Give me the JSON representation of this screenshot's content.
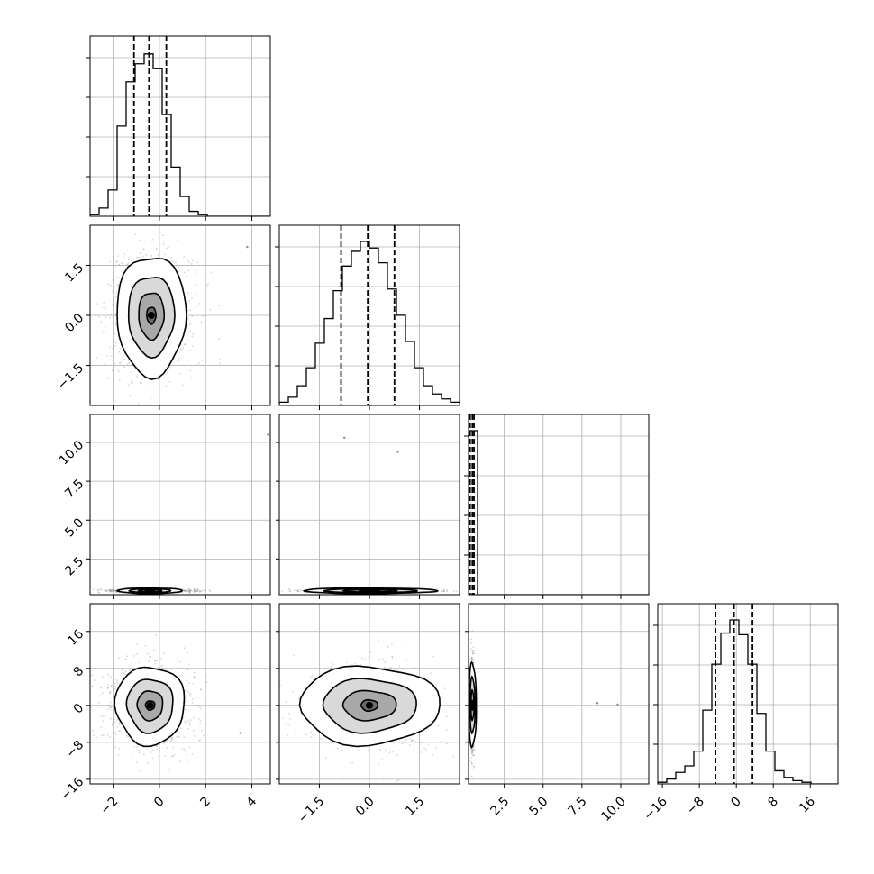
{
  "chart_data": {
    "type": "corner",
    "title": "",
    "grid": true,
    "parameters": [
      {
        "index": 0,
        "range": [
          -3.0,
          4.8
        ],
        "ticks": [
          -2,
          0,
          2,
          4
        ],
        "median": -0.45,
        "q16": -1.1,
        "q84": 0.3
      },
      {
        "index": 1,
        "range": [
          -2.7,
          2.7
        ],
        "ticks": [
          -1.5,
          0.0,
          1.5
        ],
        "median": -0.05,
        "q16": -0.85,
        "q84": 0.75
      },
      {
        "index": 2,
        "range": [
          0.2,
          11.8
        ],
        "ticks": [
          2.5,
          5.0,
          7.5,
          10.0
        ],
        "median": 0.45,
        "q16": 0.3,
        "q84": 0.55
      },
      {
        "index": 3,
        "range": [
          -17,
          22
        ],
        "ticks": [
          -16,
          -8,
          0,
          8,
          16
        ],
        "median": -0.5,
        "q16": -4.5,
        "q84": 3.5
      }
    ],
    "tick_labels": {
      "p0": [
        "−2",
        "0",
        "2",
        "4"
      ],
      "p1": [
        "−1.5",
        "0.0",
        "1.5"
      ],
      "p2": [
        "2.5",
        "5.0",
        "7.5",
        "10.0"
      ],
      "p3": [
        "−16",
        "−8",
        "0",
        "8",
        "16"
      ]
    },
    "histograms": [
      {
        "param": 0,
        "bin_edges": [
          -3.0,
          -2.61,
          -2.22,
          -1.83,
          -1.44,
          -1.05,
          -0.66,
          -0.27,
          0.12,
          0.51,
          0.9,
          1.29,
          1.68,
          2.07,
          2.46,
          2.85,
          3.24,
          3.63,
          4.02,
          4.41,
          4.8
        ],
        "counts": [
          0.01,
          0.05,
          0.16,
          0.55,
          0.82,
          0.93,
          0.99,
          0.9,
          0.62,
          0.3,
          0.12,
          0.03,
          0.01,
          0.0,
          0.0,
          0.0,
          0.0,
          0.0,
          0.0,
          0.0
        ]
      },
      {
        "param": 1,
        "bin_edges": [
          -2.7,
          -2.43,
          -2.16,
          -1.89,
          -1.62,
          -1.35,
          -1.08,
          -0.81,
          -0.54,
          -0.27,
          0.0,
          0.27,
          0.54,
          0.81,
          1.08,
          1.35,
          1.62,
          1.89,
          2.16,
          2.43,
          2.7
        ],
        "counts": [
          0.02,
          0.05,
          0.12,
          0.23,
          0.38,
          0.53,
          0.7,
          0.85,
          0.94,
          1.0,
          0.96,
          0.87,
          0.71,
          0.55,
          0.39,
          0.23,
          0.12,
          0.07,
          0.04,
          0.02
        ]
      },
      {
        "param": 2,
        "bin_edges": [
          0.2,
          0.78,
          1.36,
          1.94,
          2.52,
          3.1,
          3.68,
          4.26,
          4.84,
          5.42,
          6.0,
          6.58,
          7.16,
          7.74,
          8.32,
          8.9,
          9.48,
          10.06,
          10.64,
          11.22,
          11.8
        ],
        "counts": [
          1.0,
          0.0,
          0.0,
          0.0,
          0.0,
          0.0,
          0.0,
          0.0,
          0.0,
          0.0,
          0.0,
          0.0,
          0.0,
          0.0,
          0.0,
          0.0,
          0.0,
          0.0,
          0.0,
          0.0
        ]
      },
      {
        "param": 3,
        "bin_edges": [
          -17.0,
          -15.05,
          -13.1,
          -11.15,
          -9.2,
          -7.25,
          -5.3,
          -3.35,
          -1.4,
          0.55,
          2.5,
          4.45,
          6.4,
          8.35,
          10.3,
          12.25,
          14.2,
          16.15,
          18.1,
          20.05,
          22.0
        ],
        "counts": [
          0.01,
          0.03,
          0.07,
          0.11,
          0.2,
          0.45,
          0.73,
          0.92,
          1.0,
          0.91,
          0.73,
          0.43,
          0.2,
          0.08,
          0.04,
          0.02,
          0.01,
          0.0,
          0.0,
          0.0
        ]
      }
    ],
    "contours_2d": [
      {
        "x_param": 0,
        "y_param": 1,
        "center": [
          -0.35,
          0.0
        ],
        "sigma_x": [
          1.5,
          1.0,
          0.55,
          0.2
        ],
        "sigma_y": [
          1.8,
          1.2,
          0.7,
          0.25
        ]
      },
      {
        "x_param": 0,
        "y_param": 3,
        "center": [
          -0.4,
          0.0
        ],
        "sigma_x": [
          1.5,
          1.0,
          0.55,
          0.2
        ],
        "sigma_y": [
          8.5,
          5.8,
          3.2,
          1.0
        ]
      },
      {
        "x_param": 1,
        "y_param": 3,
        "center": [
          0.0,
          0.0
        ],
        "sigma_x": [
          2.1,
          1.4,
          0.8,
          0.25
        ],
        "sigma_y": [
          8.5,
          5.8,
          3.2,
          1.2
        ]
      },
      {
        "x_param": 0,
        "y_param": 2,
        "center": [
          -0.4,
          0.45
        ],
        "sigma_x": [
          1.4,
          0.9,
          0.5,
          0.2
        ],
        "sigma_y": [
          0.18,
          0.12,
          0.07,
          0.03
        ]
      },
      {
        "x_param": 1,
        "y_param": 2,
        "center": [
          0.0,
          0.45
        ],
        "sigma_x": [
          2.0,
          1.4,
          0.8,
          0.3
        ],
        "sigma_y": [
          0.18,
          0.12,
          0.07,
          0.03
        ]
      },
      {
        "x_param": 2,
        "y_param": 3,
        "center": [
          0.45,
          0.0
        ],
        "sigma_x": [
          0.25,
          0.17,
          0.1,
          0.04
        ],
        "sigma_y": [
          9.0,
          6.0,
          3.2,
          1.0
        ]
      }
    ],
    "scatter_spread": [
      1.0,
      1.0,
      0.12,
      5.0
    ],
    "outliers": [
      {
        "x_param": 0,
        "y_param": 1,
        "x": 3.8,
        "y": 2.05
      },
      {
        "x_param": 0,
        "y_param": 2,
        "x": 4.7,
        "y": 10.5
      },
      {
        "x_param": 1,
        "y_param": 2,
        "x": -0.75,
        "y": 10.3
      },
      {
        "x_param": 1,
        "y_param": 2,
        "x": 0.85,
        "y": 9.4
      },
      {
        "x_param": 0,
        "y_param": 3,
        "x": 3.5,
        "y": -6.0
      },
      {
        "x_param": 2,
        "y_param": 3,
        "x": 8.5,
        "y": 0.5
      },
      {
        "x_param": 2,
        "y_param": 3,
        "x": 9.8,
        "y": 0.2
      }
    ]
  }
}
